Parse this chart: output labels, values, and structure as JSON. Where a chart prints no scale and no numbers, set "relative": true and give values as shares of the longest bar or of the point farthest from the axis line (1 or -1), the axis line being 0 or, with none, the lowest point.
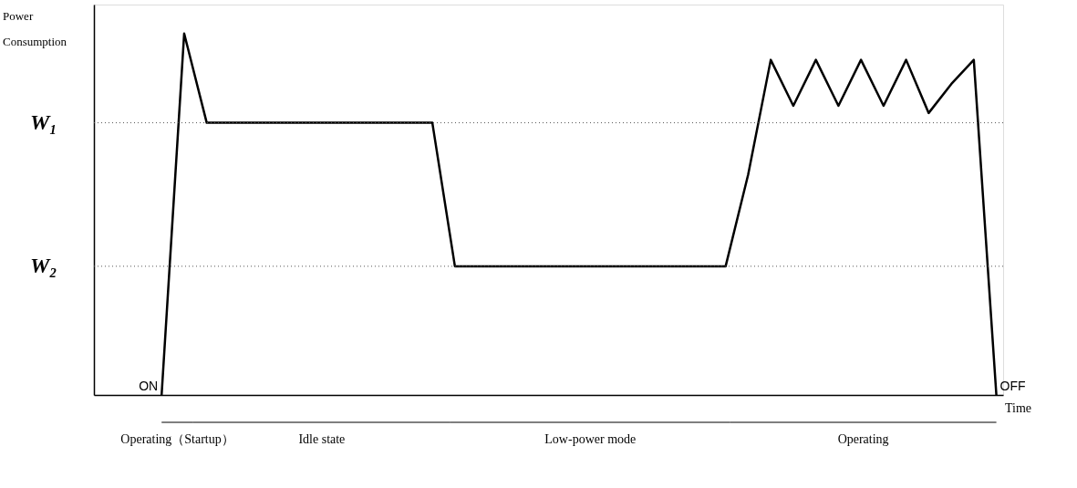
{
  "chart_data": {
    "type": "line",
    "relative": true,
    "ylabel": "Power Consumption",
    "xlabel": "Time",
    "categories": [
      null,
      null,
      null,
      null,
      null,
      null,
      null,
      null,
      null,
      null,
      null,
      null,
      null,
      null,
      null,
      null,
      null,
      null,
      null,
      null,
      null,
      null,
      null,
      null,
      null,
      null,
      null,
      null,
      null,
      null,
      null,
      null,
      null,
      null,
      null,
      null,
      null,
      null,
      null,
      null,
      null
    ],
    "values": [
      null,
      null,
      null,
      0,
      1,
      0.753,
      0.753,
      0.753,
      0.753,
      0.753,
      0.753,
      0.753,
      0.753,
      0.753,
      0.753,
      0.753,
      0.356,
      0.356,
      0.356,
      0.356,
      0.356,
      0.356,
      0.356,
      0.356,
      0.356,
      0.356,
      0.356,
      0.356,
      0.356,
      0.61,
      0.927,
      0.8,
      0.927,
      0.8,
      0.927,
      0.8,
      0.927,
      0.78,
      0.86,
      0.927,
      0
    ],
    "color": "#000000",
    "legend": false,
    "grid": false,
    "marker": "none",
    "line_style": "solid",
    "tick_labels": false,
    "ref_lines": [
      {
        "axis": "y",
        "value": 0.753,
        "label": "W₁",
        "line_style": "dotted"
      },
      {
        "axis": "y",
        "value": 0.356,
        "label": "W₂",
        "line_style": "dotted"
      }
    ],
    "annotations": [
      "ON",
      "OFF",
      "Operating（Startup）",
      "Idle state",
      "Low-power mode",
      "Operating"
    ]
  }
}
